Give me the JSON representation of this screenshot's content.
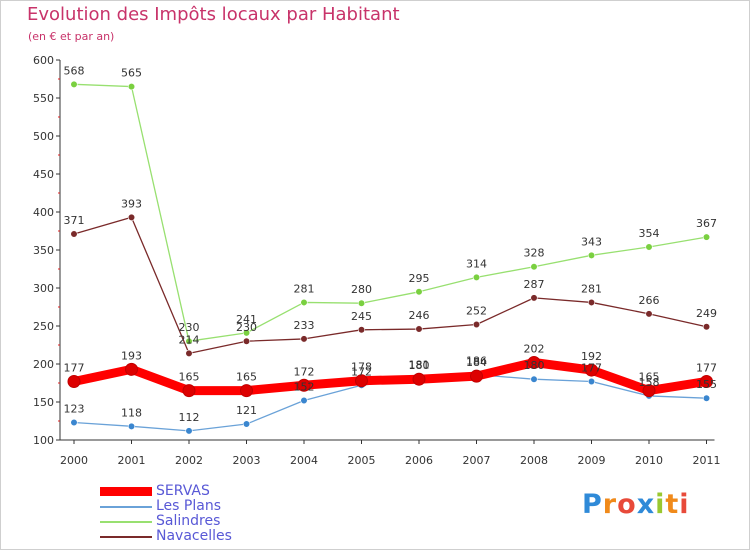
{
  "chart_data": {
    "type": "line",
    "title": "Evolution des Impôts locaux par Habitant",
    "subtitle": "(en € et par an)",
    "categories": [
      "2000",
      "2001",
      "2002",
      "2003",
      "2004",
      "2005",
      "2006",
      "2007",
      "2008",
      "2009",
      "2010",
      "2011"
    ],
    "ylim": [
      100,
      600
    ],
    "yticks": [
      100,
      150,
      200,
      250,
      300,
      350,
      400,
      450,
      500,
      550,
      600
    ],
    "grid": false,
    "series": [
      {
        "name": "SERVAS",
        "color": "#ff0000",
        "marker": "#dd0000",
        "values": [
          177,
          193,
          165,
          165,
          172,
          178,
          180,
          184,
          202,
          192,
          165,
          177
        ]
      },
      {
        "name": "Les Plans",
        "color": "#6aa2d8",
        "marker": "#3a86cf",
        "values": [
          123,
          118,
          112,
          121,
          152,
          172,
          181,
          186,
          180,
          177,
          158,
          155
        ]
      },
      {
        "name": "Salindres",
        "color": "#98e070",
        "marker": "#7ad040",
        "values": [
          568,
          565,
          230,
          241,
          281,
          280,
          295,
          314,
          328,
          343,
          354,
          367
        ]
      },
      {
        "name": "Navacelles",
        "color": "#7a2a2a",
        "marker": "#7a2a2a",
        "values": [
          371,
          393,
          214,
          230,
          233,
          245,
          246,
          252,
          287,
          281,
          266,
          249
        ]
      }
    ]
  },
  "logo": {
    "letters": [
      "P",
      "r",
      "o",
      "x",
      "i",
      "t",
      "i"
    ],
    "colors": [
      "#2f8ad8",
      "#f08a1a",
      "#e84a3a",
      "#2f8ad8",
      "#9ac830",
      "#f08a1a",
      "#e84a3a"
    ]
  }
}
